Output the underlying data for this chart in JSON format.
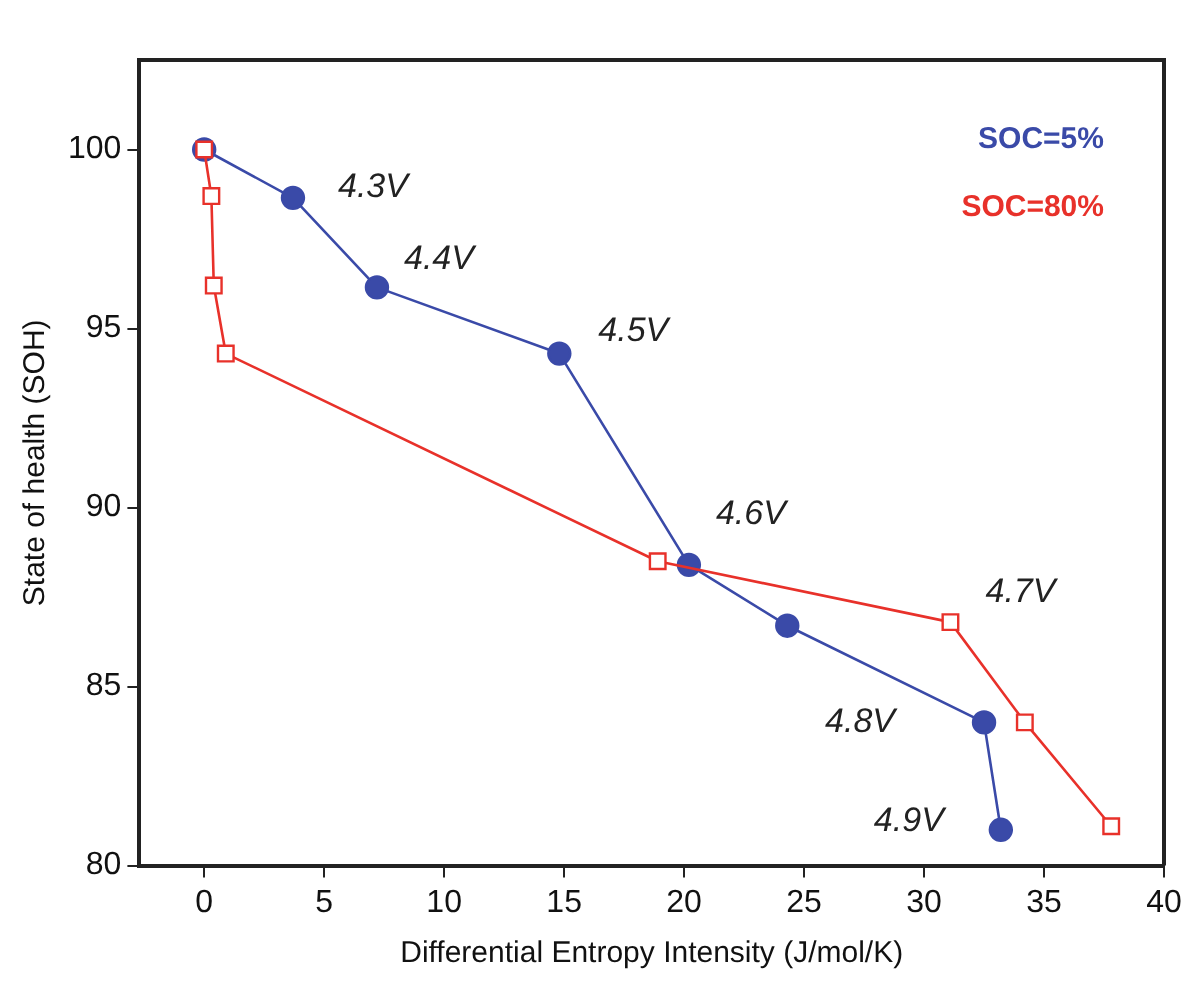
{
  "chart_data": {
    "type": "line",
    "xlabel": "Differential Entropy Intensity (J/mol/K)",
    "ylabel": "State of health (SOH)",
    "xlim": [
      -2.7,
      40
    ],
    "xticks": [
      0,
      5,
      10,
      15,
      20,
      25,
      30,
      35,
      40
    ],
    "ylim": [
      80,
      102.5
    ],
    "yticks": [
      80,
      85,
      90,
      95,
      100
    ],
    "grid": false,
    "legend": "top right",
    "series": [
      {
        "name": "SOC=5%",
        "color": "#3a4aa8",
        "marker": "circle",
        "x": [
          0,
          3.7,
          7.2,
          14.8,
          20.2,
          24.3,
          32.5,
          33.2
        ],
        "values": [
          100,
          98.65,
          96.15,
          94.3,
          88.4,
          86.7,
          84.0,
          81.0
        ]
      },
      {
        "name": "SOC=80%",
        "color": "#e8312a",
        "marker": "square",
        "x": [
          0,
          0.3,
          0.4,
          0.9,
          18.9,
          31.1,
          34.2,
          37.8
        ],
        "values": [
          100,
          98.7,
          96.2,
          94.3,
          88.5,
          86.8,
          84.0,
          81.1
        ]
      }
    ],
    "annotations": [
      {
        "text": "4.3V",
        "x": 3.7,
        "y": 98.65
      },
      {
        "text": "4.4V",
        "x": 7.2,
        "y": 96.15
      },
      {
        "text": "4.5V",
        "x": 14.8,
        "y": 94.3
      },
      {
        "text": "4.6V",
        "x": 20.2,
        "y": 88.4
      },
      {
        "text": "4.7V",
        "x": 31.1,
        "y": 86.8
      },
      {
        "text": "4.8V",
        "x": 32.5,
        "y": 84.0
      },
      {
        "text": "4.9V",
        "x": 33.2,
        "y": 81.0
      }
    ]
  }
}
